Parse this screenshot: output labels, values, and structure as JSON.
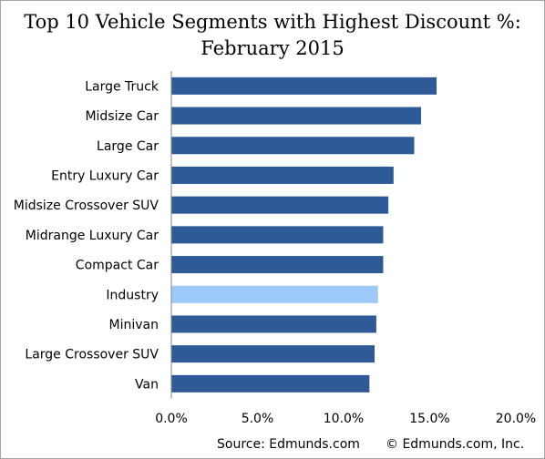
{
  "chart_data": {
    "type": "bar",
    "orientation": "horizontal",
    "title_line1": "Top 10 Vehicle Segments with Highest Discount %:",
    "title_line2": "February 2015",
    "categories": [
      "Large Truck",
      "Midsize Car",
      "Large Car",
      "Entry Luxury Car",
      "Midsize Crossover SUV",
      "Midrange Luxury Car",
      "Compact Car",
      "Industry",
      "Minivan",
      "Large Crossover SUV",
      "Van"
    ],
    "values": [
      15.4,
      14.5,
      14.1,
      12.9,
      12.6,
      12.3,
      12.3,
      12.0,
      11.9,
      11.8,
      11.5
    ],
    "highlight": "Industry",
    "xlim": [
      0,
      20
    ],
    "xticks": [
      "0.0%",
      "5.0%",
      "10.0%",
      "15.0%",
      "20.0%"
    ],
    "grid": false,
    "bar_color": "#2e5b98",
    "highlight_color": "#9cc9f7"
  },
  "footer": {
    "source": "Source: Edmunds.com",
    "copyright": "© Edmunds.com, Inc."
  }
}
